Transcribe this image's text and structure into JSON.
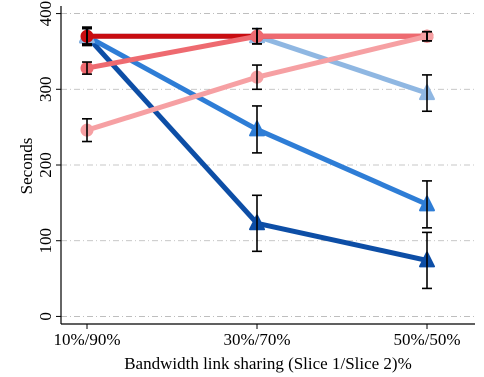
{
  "chart_data": {
    "type": "line",
    "title": "",
    "xlabel": "Bandwidth link sharing (Slice 1/Slice 2)%",
    "ylabel": "Seconds",
    "categories": [
      "10%/90%",
      "30%/70%",
      "50%/50%"
    ],
    "ylim": [
      -10,
      410
    ],
    "yticks": [
      0,
      100,
      200,
      300,
      400
    ],
    "grid": "horizontal-dashdot",
    "legend": "none",
    "series": [
      {
        "color": "#0D4EA6",
        "marker": "triangle",
        "values": [
          370,
          123,
          74
        ],
        "err": [
          12,
          37,
          37
        ]
      },
      {
        "color": "#2E7DD6",
        "marker": "triangle",
        "values": [
          370,
          247,
          148
        ],
        "err": [
          12,
          31,
          31
        ]
      },
      {
        "color": "#8FB7E2",
        "marker": "triangle",
        "values": [
          370,
          370,
          295
        ],
        "err": [
          12,
          10,
          24
        ]
      },
      {
        "color": "#C80C10",
        "marker": "circle",
        "values": [
          370,
          370,
          370
        ],
        "err": [
          10,
          10,
          6
        ]
      },
      {
        "color": "#EE6A70",
        "marker": "circle",
        "values": [
          328,
          370,
          370
        ],
        "err": [
          8,
          10,
          6
        ]
      },
      {
        "color": "#F6A0A3",
        "marker": "circle",
        "values": [
          246,
          316,
          370
        ],
        "err": [
          15,
          16,
          6
        ]
      }
    ]
  }
}
